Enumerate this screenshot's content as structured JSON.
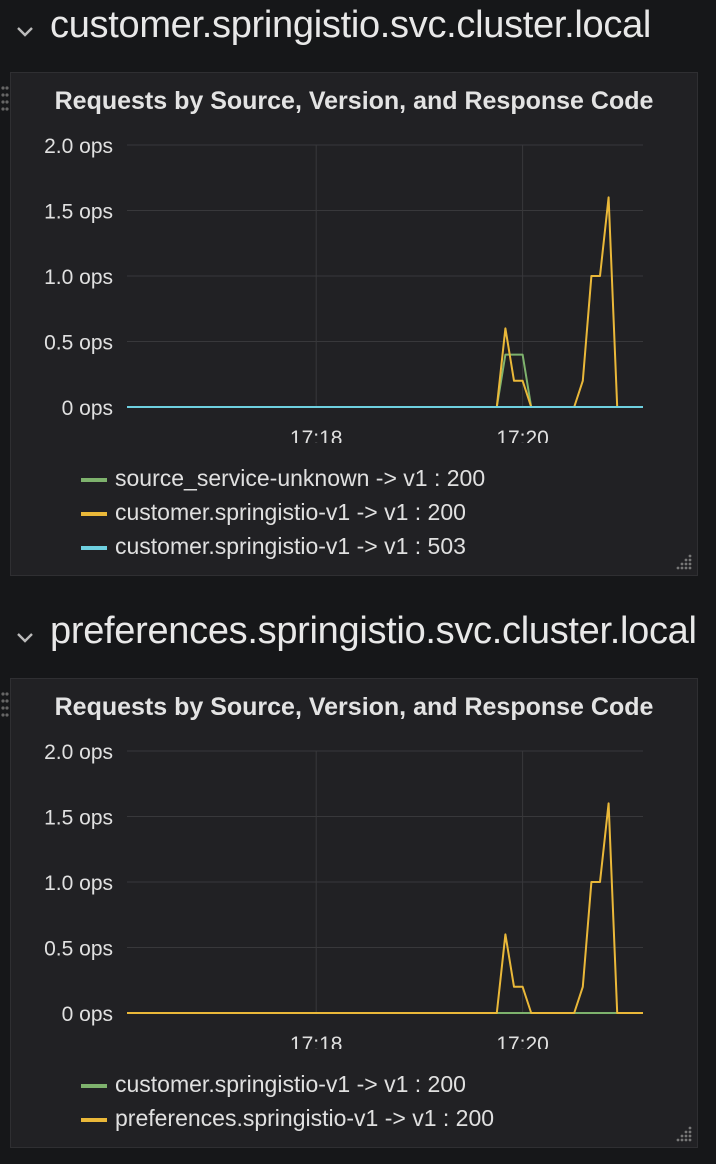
{
  "rows": [
    {
      "title": "customer.springistio.svc.cluster.local",
      "panel": {
        "title": "Requests by Source, Version, and Response Code",
        "legend": [
          {
            "label": "source_service-unknown -> v1 : 200",
            "color": "#7eb26d"
          },
          {
            "label": "customer.springistio-v1 -> v1 : 200",
            "color": "#eab839"
          },
          {
            "label": "customer.springistio-v1 -> v1 : 503",
            "color": "#6ed0e0"
          }
        ]
      }
    },
    {
      "title": "preferences.springistio.svc.cluster.local",
      "panel": {
        "title": "Requests by Source, Version, and Response Code",
        "legend": [
          {
            "label": "customer.springistio-v1 -> v1 : 200",
            "color": "#7eb26d"
          },
          {
            "label": "preferences.springistio-v1 -> v1 : 200",
            "color": "#eab839"
          }
        ]
      }
    }
  ],
  "chart_data": [
    {
      "type": "line",
      "title": "Requests by Source, Version, and Response Code",
      "x_ticks": [
        "17:18",
        "17:20"
      ],
      "y_ticks": [
        "0 ops",
        "0.5 ops",
        "1.0 ops",
        "1.5 ops",
        "2.0 ops"
      ],
      "xlim": [
        "17:16:10",
        "17:21:10"
      ],
      "ylim": [
        0,
        2.0
      ],
      "grid": true,
      "legend_position": "bottom-left",
      "series": [
        {
          "name": "source_service-unknown -> v1 : 200",
          "color": "#7eb26d",
          "points": [
            [
              "17:16:10",
              0
            ],
            [
              "17:19:45",
              0
            ],
            [
              "17:19:50",
              0.4
            ],
            [
              "17:20:00",
              0.4
            ],
            [
              "17:20:05",
              0
            ],
            [
              "17:21:10",
              0
            ]
          ]
        },
        {
          "name": "customer.springistio-v1 -> v1 : 200",
          "color": "#eab839",
          "points": [
            [
              "17:16:10",
              0
            ],
            [
              "17:19:45",
              0
            ],
            [
              "17:19:50",
              0.6
            ],
            [
              "17:19:55",
              0.2
            ],
            [
              "17:20:00",
              0.2
            ],
            [
              "17:20:05",
              0
            ],
            [
              "17:20:30",
              0
            ],
            [
              "17:20:35",
              0.2
            ],
            [
              "17:20:40",
              1.0
            ],
            [
              "17:20:45",
              1.0
            ],
            [
              "17:20:50",
              1.6
            ],
            [
              "17:20:55",
              0
            ],
            [
              "17:21:10",
              0
            ]
          ]
        },
        {
          "name": "customer.springistio-v1 -> v1 : 503",
          "color": "#6ed0e0",
          "points": [
            [
              "17:16:10",
              0
            ],
            [
              "17:21:10",
              0
            ]
          ]
        }
      ]
    },
    {
      "type": "line",
      "title": "Requests by Source, Version, and Response Code",
      "x_ticks": [
        "17:18",
        "17:20"
      ],
      "y_ticks": [
        "0 ops",
        "0.5 ops",
        "1.0 ops",
        "1.5 ops",
        "2.0 ops"
      ],
      "xlim": [
        "17:16:10",
        "17:21:10"
      ],
      "ylim": [
        0,
        2.0
      ],
      "grid": true,
      "legend_position": "bottom-left",
      "series": [
        {
          "name": "customer.springistio-v1 -> v1 : 200",
          "color": "#7eb26d",
          "points": [
            [
              "17:16:10",
              0
            ],
            [
              "17:21:10",
              0
            ]
          ]
        },
        {
          "name": "preferences.springistio-v1 -> v1 : 200",
          "color": "#eab839",
          "points": [
            [
              "17:16:10",
              0
            ],
            [
              "17:19:45",
              0
            ],
            [
              "17:19:50",
              0.6
            ],
            [
              "17:19:55",
              0.2
            ],
            [
              "17:20:00",
              0.2
            ],
            [
              "17:20:05",
              0
            ],
            [
              "17:20:30",
              0
            ],
            [
              "17:20:35",
              0.2
            ],
            [
              "17:20:40",
              1.0
            ],
            [
              "17:20:45",
              1.0
            ],
            [
              "17:20:50",
              1.6
            ],
            [
              "17:20:55",
              0
            ],
            [
              "17:21:10",
              0
            ]
          ]
        }
      ]
    }
  ]
}
